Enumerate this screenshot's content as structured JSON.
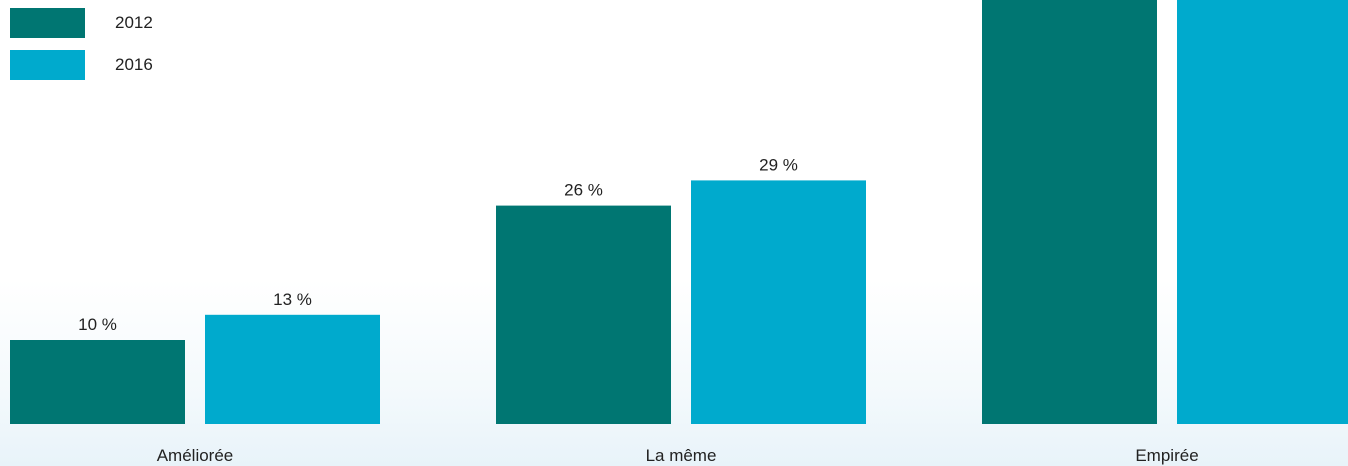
{
  "chart_data": {
    "type": "bar",
    "categories": [
      "Améliorée",
      "La même",
      "Empirée"
    ],
    "series": [
      {
        "name": "2012",
        "values": [
          10,
          26,
          null
        ],
        "labels": [
          "10 %",
          "26 %",
          ""
        ],
        "color": "#007672"
      },
      {
        "name": "2016",
        "values": [
          13,
          29,
          null
        ],
        "labels": [
          "13 %",
          "29 %",
          ""
        ],
        "color": "#00aacd"
      }
    ],
    "title": "",
    "xlabel": "",
    "ylabel": "",
    "ylim": [
      0,
      44
    ],
    "note": "Empirée bars extend beyond the top of the visible area; their values and labels are not shown",
    "legend_position": "top-left",
    "grid": false
  }
}
